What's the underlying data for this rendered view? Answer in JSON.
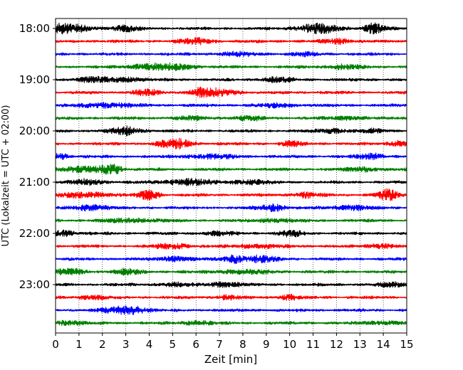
{
  "chart_data": {
    "type": "line",
    "title": "",
    "xlabel": "Zeit  [min]",
    "ylabel": "UTC (Lokalzeit = UTC + 02:00)",
    "xlim": [
      0,
      15
    ],
    "x_ticks": [
      "0",
      "1",
      "2",
      "3",
      "4",
      "5",
      "6",
      "7",
      "8",
      "9",
      "10",
      "11",
      "12",
      "13",
      "14",
      "15"
    ],
    "y_ticks": [
      "18:00",
      "19:00",
      "20:00",
      "21:00",
      "22:00",
      "23:00"
    ],
    "grid": "vertical-dotted",
    "trace_interval_min": 15,
    "colors": [
      "#000000",
      "#ff0000",
      "#0000ff",
      "#008000"
    ],
    "traces": [
      {
        "start": "18:00",
        "bursts": [
          [
            0.3,
            0.8,
            1.4
          ],
          [
            3.0,
            0.4,
            0.9
          ],
          [
            11.2,
            0.6,
            1.5
          ],
          [
            13.6,
            0.3,
            1.6
          ]
        ]
      },
      {
        "start": "18:15",
        "bursts": [
          [
            6.0,
            0.5,
            0.9
          ],
          [
            12.1,
            0.4,
            0.8
          ]
        ]
      },
      {
        "start": "18:30",
        "bursts": [
          [
            7.8,
            0.6,
            0.6
          ],
          [
            10.6,
            0.4,
            0.5
          ]
        ]
      },
      {
        "start": "18:45",
        "bursts": [
          [
            3.8,
            0.5,
            0.8
          ],
          [
            5.1,
            0.6,
            0.9
          ],
          [
            12.3,
            0.5,
            0.7
          ]
        ]
      },
      {
        "start": "19:00",
        "bursts": [
          [
            1.7,
            0.6,
            0.7
          ],
          [
            3.1,
            0.5,
            0.7
          ],
          [
            9.4,
            0.5,
            0.7
          ]
        ]
      },
      {
        "start": "19:15",
        "bursts": [
          [
            3.9,
            0.4,
            0.9
          ],
          [
            6.3,
            0.4,
            1.6
          ],
          [
            7.3,
            0.5,
            0.7
          ]
        ]
      },
      {
        "start": "19:30",
        "bursts": [
          [
            2.2,
            0.8,
            0.8
          ],
          [
            9.5,
            0.6,
            0.5
          ]
        ]
      },
      {
        "start": "19:45",
        "bursts": [
          [
            5.7,
            0.5,
            0.5
          ],
          [
            8.3,
            0.5,
            0.6
          ],
          [
            12.5,
            0.5,
            0.5
          ]
        ]
      },
      {
        "start": "20:00",
        "bursts": [
          [
            3.0,
            0.5,
            1.2
          ],
          [
            11.9,
            0.5,
            0.6
          ],
          [
            13.5,
            0.4,
            0.5
          ]
        ]
      },
      {
        "start": "20:15",
        "bursts": [
          [
            5.1,
            0.5,
            1.5
          ],
          [
            10.1,
            0.3,
            0.9
          ],
          [
            14.7,
            0.3,
            1.0
          ]
        ]
      },
      {
        "start": "20:30",
        "bursts": [
          [
            0.2,
            0.3,
            0.9
          ],
          [
            6.5,
            0.8,
            0.6
          ],
          [
            13.5,
            0.4,
            0.9
          ]
        ]
      },
      {
        "start": "20:45",
        "bursts": [
          [
            1.2,
            0.8,
            0.8
          ],
          [
            2.4,
            0.3,
            1.4
          ],
          [
            13.2,
            0.5,
            0.6
          ]
        ]
      },
      {
        "start": "21:00",
        "bursts": [
          [
            1.4,
            0.5,
            0.8
          ],
          [
            5.7,
            0.8,
            0.9
          ],
          [
            8.3,
            0.6,
            0.6
          ]
        ]
      },
      {
        "start": "21:15",
        "bursts": [
          [
            1.3,
            0.8,
            0.8
          ],
          [
            4.0,
            0.3,
            1.5
          ],
          [
            10.7,
            0.4,
            0.8
          ],
          [
            14.2,
            0.3,
            1.7
          ]
        ]
      },
      {
        "start": "21:30",
        "bursts": [
          [
            1.5,
            0.5,
            0.9
          ],
          [
            9.3,
            0.4,
            1.1
          ],
          [
            12.6,
            0.5,
            0.8
          ]
        ]
      },
      {
        "start": "21:45",
        "bursts": [
          [
            3.3,
            0.8,
            0.6
          ],
          [
            9.3,
            0.6,
            0.5
          ]
        ]
      },
      {
        "start": "22:00",
        "bursts": [
          [
            0.3,
            0.4,
            0.9
          ],
          [
            7.0,
            0.5,
            0.5
          ],
          [
            10.0,
            0.4,
            0.9
          ]
        ]
      },
      {
        "start": "22:15",
        "bursts": [
          [
            5.0,
            0.5,
            0.8
          ],
          [
            8.6,
            0.6,
            0.6
          ],
          [
            13.9,
            0.4,
            0.7
          ]
        ]
      },
      {
        "start": "22:30",
        "bursts": [
          [
            5.1,
            0.5,
            0.7
          ],
          [
            7.6,
            0.3,
            1.1
          ],
          [
            8.7,
            0.5,
            1.0
          ]
        ]
      },
      {
        "start": "22:45",
        "bursts": [
          [
            0.6,
            0.5,
            0.8
          ],
          [
            3.0,
            0.4,
            0.9
          ],
          [
            8.0,
            0.8,
            0.6
          ]
        ]
      },
      {
        "start": "23:00",
        "bursts": [
          [
            5.1,
            0.5,
            0.5
          ],
          [
            7.2,
            0.5,
            0.8
          ],
          [
            14.4,
            0.4,
            0.7
          ]
        ]
      },
      {
        "start": "23:15",
        "bursts": [
          [
            1.5,
            0.4,
            0.6
          ],
          [
            7.4,
            0.4,
            0.6
          ],
          [
            10.0,
            0.3,
            0.8
          ]
        ]
      },
      {
        "start": "23:30",
        "bursts": [
          [
            2.7,
            0.5,
            1.0
          ],
          [
            3.5,
            0.4,
            0.8
          ]
        ]
      },
      {
        "start": "23:45",
        "bursts": [
          [
            0.5,
            0.5,
            0.6
          ],
          [
            6.0,
            0.5,
            0.6
          ],
          [
            13.9,
            0.6,
            0.5
          ]
        ]
      }
    ]
  }
}
